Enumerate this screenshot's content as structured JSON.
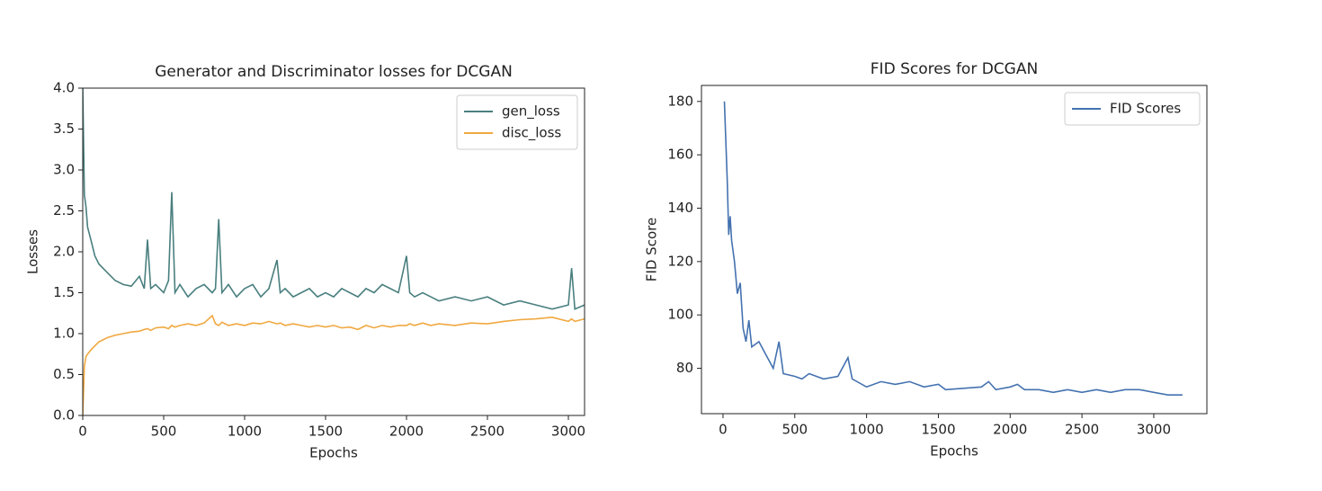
{
  "chart_data": [
    {
      "type": "line",
      "title": "Generator and Discriminator losses for DCGAN",
      "x_label": "Epochs",
      "y_label": "Losses",
      "x": [
        0,
        10,
        20,
        30,
        50,
        75,
        100,
        150,
        200,
        250,
        300,
        350,
        380,
        400,
        420,
        450,
        500,
        530,
        550,
        570,
        600,
        650,
        700,
        750,
        800,
        820,
        840,
        860,
        900,
        950,
        1000,
        1050,
        1100,
        1150,
        1200,
        1220,
        1250,
        1300,
        1350,
        1400,
        1450,
        1500,
        1550,
        1600,
        1650,
        1700,
        1750,
        1800,
        1850,
        1900,
        1950,
        2000,
        2020,
        2050,
        2100,
        2150,
        2200,
        2300,
        2400,
        2500,
        2600,
        2700,
        2800,
        2900,
        3000,
        3020,
        3040,
        3100
      ],
      "series": [
        {
          "name": "gen_loss",
          "color": "#4a7f7f",
          "values": [
            4.0,
            2.7,
            2.55,
            2.3,
            2.15,
            1.95,
            1.85,
            1.75,
            1.65,
            1.6,
            1.58,
            1.7,
            1.55,
            2.15,
            1.55,
            1.6,
            1.5,
            1.65,
            2.73,
            1.5,
            1.6,
            1.45,
            1.55,
            1.6,
            1.5,
            1.55,
            2.4,
            1.5,
            1.6,
            1.45,
            1.55,
            1.6,
            1.45,
            1.55,
            1.9,
            1.5,
            1.55,
            1.45,
            1.5,
            1.55,
            1.45,
            1.5,
            1.45,
            1.55,
            1.5,
            1.45,
            1.55,
            1.5,
            1.6,
            1.55,
            1.5,
            1.95,
            1.5,
            1.45,
            1.5,
            1.45,
            1.4,
            1.45,
            1.4,
            1.45,
            1.35,
            1.4,
            1.35,
            1.3,
            1.35,
            1.8,
            1.3,
            1.35
          ]
        },
        {
          "name": "disc_loss",
          "color": "#f0a840",
          "values": [
            0.0,
            0.6,
            0.72,
            0.75,
            0.8,
            0.85,
            0.9,
            0.95,
            0.98,
            1.0,
            1.02,
            1.03,
            1.05,
            1.06,
            1.04,
            1.07,
            1.08,
            1.06,
            1.1,
            1.08,
            1.1,
            1.12,
            1.1,
            1.13,
            1.22,
            1.12,
            1.1,
            1.14,
            1.1,
            1.12,
            1.1,
            1.13,
            1.12,
            1.15,
            1.12,
            1.13,
            1.1,
            1.12,
            1.1,
            1.08,
            1.1,
            1.08,
            1.1,
            1.07,
            1.08,
            1.05,
            1.1,
            1.07,
            1.1,
            1.08,
            1.1,
            1.1,
            1.12,
            1.1,
            1.13,
            1.1,
            1.12,
            1.1,
            1.13,
            1.12,
            1.15,
            1.17,
            1.18,
            1.2,
            1.15,
            1.18,
            1.15,
            1.18
          ]
        }
      ],
      "xlim": [
        0,
        3100
      ],
      "xticks": [
        0,
        500,
        1000,
        1500,
        2000,
        2500,
        3000
      ],
      "ylim": [
        0,
        4
      ],
      "yticks": [
        {
          "value": 0,
          "label": "0.0"
        },
        {
          "value": 0.5,
          "label": "0.5"
        },
        {
          "value": 1,
          "label": "1.0"
        },
        {
          "value": 1.5,
          "label": "1.5"
        },
        {
          "value": 2,
          "label": "2.0"
        },
        {
          "value": 2.5,
          "label": "2.5"
        },
        {
          "value": 3,
          "label": "3.0"
        },
        {
          "value": 3.5,
          "label": "3.5"
        },
        {
          "value": 4,
          "label": "4.0"
        }
      ],
      "legend": "upper-right",
      "grid": false
    },
    {
      "type": "line",
      "title": "FID Scores for DCGAN",
      "x_label": "Epochs",
      "y_label": "FID Score",
      "x": [
        10,
        30,
        40,
        50,
        60,
        80,
        100,
        120,
        140,
        160,
        180,
        200,
        250,
        300,
        350,
        390,
        420,
        500,
        550,
        600,
        700,
        800,
        870,
        900,
        1000,
        1100,
        1200,
        1300,
        1400,
        1500,
        1550,
        1800,
        1850,
        1900,
        2000,
        2050,
        2100,
        2200,
        2300,
        2400,
        2500,
        2600,
        2700,
        2800,
        2900,
        3000,
        3100,
        3200
      ],
      "series": [
        {
          "name": "FID Scores",
          "color": "#4472b0",
          "values": [
            180,
            150,
            130,
            137,
            128,
            120,
            108,
            112,
            95,
            90,
            98,
            88,
            90,
            85,
            80,
            90,
            78,
            77,
            76,
            78,
            76,
            77,
            84,
            76,
            73,
            75,
            74,
            75,
            73,
            74,
            72,
            73,
            75,
            72,
            73,
            74,
            72,
            72,
            71,
            72,
            71,
            72,
            71,
            72,
            72,
            71,
            70,
            70
          ]
        }
      ],
      "xlim": [
        -150,
        3370
      ],
      "xticks": [
        0,
        500,
        1000,
        1500,
        2000,
        2500,
        3000
      ],
      "ylim": [
        63,
        186
      ],
      "yticks": [
        80,
        100,
        120,
        140,
        160,
        180
      ],
      "legend": "upper-right",
      "grid": false
    }
  ]
}
